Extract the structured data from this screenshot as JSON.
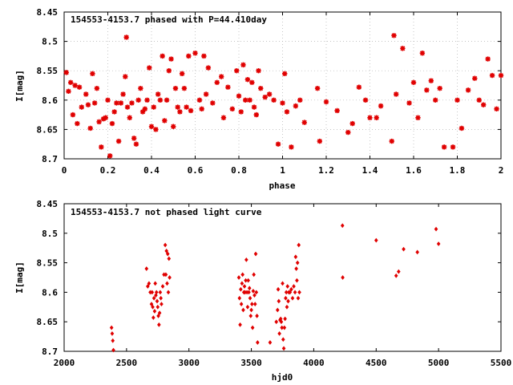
{
  "chart_data": [
    {
      "type": "scatter",
      "title": "154553-4153.7 phased with P=44.410day",
      "xlabel": "phase",
      "ylabel": "I[mag]",
      "xlim": [
        0,
        2
      ],
      "ylim": [
        8.45,
        8.7
      ],
      "y_inverted": true,
      "grid": true,
      "xticks": [
        "0",
        "0.2",
        "0.4",
        "0.6",
        "0.8",
        "1",
        "1.2",
        "1.4",
        "1.6",
        "1.8",
        "2"
      ],
      "yticks": [
        "8.45",
        "8.5",
        "8.55",
        "8.6",
        "8.65",
        "8.7"
      ],
      "marker": "star",
      "color": "#e00000",
      "points": [
        [
          0.01,
          8.553
        ],
        [
          0.02,
          8.585
        ],
        [
          0.03,
          8.57
        ],
        [
          0.04,
          8.625
        ],
        [
          0.05,
          8.575
        ],
        [
          0.06,
          8.64
        ],
        [
          0.07,
          8.578
        ],
        [
          0.08,
          8.612
        ],
        [
          0.1,
          8.59
        ],
        [
          0.11,
          8.608
        ],
        [
          0.12,
          8.648
        ],
        [
          0.13,
          8.555
        ],
        [
          0.14,
          8.605
        ],
        [
          0.15,
          8.58
        ],
        [
          0.16,
          8.637
        ],
        [
          0.17,
          8.68
        ],
        [
          0.18,
          8.632
        ],
        [
          0.19,
          8.63
        ],
        [
          0.2,
          8.6
        ],
        [
          0.21,
          8.695
        ],
        [
          0.22,
          8.64
        ],
        [
          0.23,
          8.62
        ],
        [
          0.24,
          8.605
        ],
        [
          0.25,
          8.67
        ],
        [
          0.26,
          8.605
        ],
        [
          0.27,
          8.59
        ],
        [
          0.28,
          8.56
        ],
        [
          0.285,
          8.493
        ],
        [
          0.29,
          8.612
        ],
        [
          0.3,
          8.63
        ],
        [
          0.31,
          8.605
        ],
        [
          0.32,
          8.665
        ],
        [
          0.33,
          8.675
        ],
        [
          0.34,
          8.6
        ],
        [
          0.35,
          8.58
        ],
        [
          0.36,
          8.62
        ],
        [
          0.37,
          8.615
        ],
        [
          0.38,
          8.6
        ],
        [
          0.39,
          8.545
        ],
        [
          0.4,
          8.645
        ],
        [
          0.41,
          8.612
        ],
        [
          0.42,
          8.65
        ],
        [
          0.43,
          8.59
        ],
        [
          0.44,
          8.6
        ],
        [
          0.45,
          8.525
        ],
        [
          0.46,
          8.635
        ],
        [
          0.47,
          8.6
        ],
        [
          0.48,
          8.55
        ],
        [
          0.49,
          8.53
        ],
        [
          0.5,
          8.645
        ],
        [
          0.51,
          8.58
        ],
        [
          0.52,
          8.612
        ],
        [
          0.53,
          8.62
        ],
        [
          0.54,
          8.555
        ],
        [
          0.55,
          8.58
        ],
        [
          0.56,
          8.612
        ],
        [
          0.57,
          8.525
        ],
        [
          0.58,
          8.618
        ],
        [
          0.6,
          8.52
        ],
        [
          0.62,
          8.6
        ],
        [
          0.63,
          8.615
        ],
        [
          0.64,
          8.525
        ],
        [
          0.65,
          8.59
        ],
        [
          0.66,
          8.545
        ],
        [
          0.68,
          8.605
        ],
        [
          0.7,
          8.57
        ],
        [
          0.72,
          8.56
        ],
        [
          0.73,
          8.63
        ],
        [
          0.75,
          8.578
        ],
        [
          0.77,
          8.615
        ],
        [
          0.79,
          8.55
        ],
        [
          0.8,
          8.593
        ],
        [
          0.81,
          8.62
        ],
        [
          0.82,
          8.54
        ],
        [
          0.83,
          8.6
        ],
        [
          0.84,
          8.565
        ],
        [
          0.85,
          8.6
        ],
        [
          0.86,
          8.57
        ],
        [
          0.87,
          8.612
        ],
        [
          0.88,
          8.625
        ],
        [
          0.89,
          8.55
        ],
        [
          0.9,
          8.58
        ],
        [
          0.92,
          8.595
        ],
        [
          0.94,
          8.59
        ],
        [
          0.96,
          8.6
        ],
        [
          0.98,
          8.675
        ],
        [
          1.0,
          8.605
        ],
        [
          1.01,
          8.555
        ],
        [
          1.02,
          8.62
        ],
        [
          1.04,
          8.68
        ],
        [
          1.06,
          8.61
        ],
        [
          1.08,
          8.6
        ],
        [
          1.1,
          8.638
        ],
        [
          1.16,
          8.58
        ],
        [
          1.17,
          8.67
        ],
        [
          1.2,
          8.603
        ],
        [
          1.25,
          8.618
        ],
        [
          1.3,
          8.655
        ],
        [
          1.32,
          8.64
        ],
        [
          1.35,
          8.578
        ],
        [
          1.38,
          8.6
        ],
        [
          1.4,
          8.63
        ],
        [
          1.43,
          8.63
        ],
        [
          1.45,
          8.61
        ],
        [
          1.5,
          8.67
        ],
        [
          1.51,
          8.49
        ],
        [
          1.52,
          8.59
        ],
        [
          1.55,
          8.512
        ],
        [
          1.58,
          8.605
        ],
        [
          1.6,
          8.57
        ],
        [
          1.62,
          8.63
        ],
        [
          1.64,
          8.52
        ],
        [
          1.66,
          8.583
        ],
        [
          1.68,
          8.567
        ],
        [
          1.7,
          8.6
        ],
        [
          1.72,
          8.58
        ],
        [
          1.74,
          8.68
        ],
        [
          1.78,
          8.68
        ],
        [
          1.8,
          8.6
        ],
        [
          1.82,
          8.648
        ],
        [
          1.85,
          8.583
        ],
        [
          1.88,
          8.563
        ],
        [
          1.9,
          8.6
        ],
        [
          1.92,
          8.608
        ],
        [
          1.94,
          8.53
        ],
        [
          1.96,
          8.558
        ],
        [
          1.98,
          8.615
        ],
        [
          2.0,
          8.558
        ]
      ]
    },
    {
      "type": "scatter",
      "title": "154553-4153.7 not phased light curve",
      "xlabel": "hjd0",
      "ylabel": "I[mag]",
      "xlim": [
        2000,
        5500
      ],
      "ylim": [
        8.45,
        8.7
      ],
      "y_inverted": true,
      "grid": false,
      "xticks": [
        "2000",
        "2500",
        "3000",
        "3500",
        "4000",
        "4500",
        "5000",
        "5500"
      ],
      "yticks": [
        "8.45",
        "8.5",
        "8.55",
        "8.6",
        "8.65",
        "8.7"
      ],
      "marker": "diamond",
      "color": "#e00000",
      "points": [
        [
          2380,
          8.66
        ],
        [
          2385,
          8.67
        ],
        [
          2390,
          8.682
        ],
        [
          2395,
          8.698
        ],
        [
          2660,
          8.56
        ],
        [
          2670,
          8.59
        ],
        [
          2680,
          8.585
        ],
        [
          2690,
          8.6
        ],
        [
          2700,
          8.62
        ],
        [
          2705,
          8.6
        ],
        [
          2710,
          8.625
        ],
        [
          2715,
          8.643
        ],
        [
          2720,
          8.61
        ],
        [
          2725,
          8.632
        ],
        [
          2730,
          8.585
        ],
        [
          2735,
          8.605
        ],
        [
          2740,
          8.6
        ],
        [
          2745,
          8.615
        ],
        [
          2750,
          8.625
        ],
        [
          2755,
          8.64
        ],
        [
          2760,
          8.655
        ],
        [
          2765,
          8.635
        ],
        [
          2770,
          8.6
        ],
        [
          2775,
          8.61
        ],
        [
          2780,
          8.62
        ],
        [
          2790,
          8.59
        ],
        [
          2800,
          8.57
        ],
        [
          2810,
          8.52
        ],
        [
          2815,
          8.57
        ],
        [
          2820,
          8.53
        ],
        [
          2825,
          8.585
        ],
        [
          2830,
          8.535
        ],
        [
          2835,
          8.6
        ],
        [
          2840,
          8.543
        ],
        [
          2845,
          8.575
        ],
        [
          3400,
          8.575
        ],
        [
          3405,
          8.61
        ],
        [
          3410,
          8.655
        ],
        [
          3415,
          8.595
        ],
        [
          3420,
          8.62
        ],
        [
          3425,
          8.585
        ],
        [
          3430,
          8.57
        ],
        [
          3435,
          8.63
        ],
        [
          3440,
          8.6
        ],
        [
          3445,
          8.59
        ],
        [
          3450,
          8.6
        ],
        [
          3455,
          8.58
        ],
        [
          3460,
          8.545
        ],
        [
          3465,
          8.6
        ],
        [
          3470,
          8.625
        ],
        [
          3475,
          8.58
        ],
        [
          3480,
          8.6
        ],
        [
          3485,
          8.593
        ],
        [
          3490,
          8.61
        ],
        [
          3495,
          8.64
        ],
        [
          3500,
          8.63
        ],
        [
          3505,
          8.62
        ],
        [
          3510,
          8.66
        ],
        [
          3515,
          8.598
        ],
        [
          3520,
          8.57
        ],
        [
          3525,
          8.605
        ],
        [
          3530,
          8.62
        ],
        [
          3535,
          8.535
        ],
        [
          3540,
          8.6
        ],
        [
          3545,
          8.64
        ],
        [
          3550,
          8.685
        ],
        [
          3650,
          8.685
        ],
        [
          3700,
          8.65
        ],
        [
          3710,
          8.63
        ],
        [
          3715,
          8.595
        ],
        [
          3720,
          8.615
        ],
        [
          3725,
          8.67
        ],
        [
          3730,
          8.647
        ],
        [
          3735,
          8.645
        ],
        [
          3740,
          8.65
        ],
        [
          3745,
          8.66
        ],
        [
          3750,
          8.585
        ],
        [
          3755,
          8.68
        ],
        [
          3760,
          8.695
        ],
        [
          3765,
          8.66
        ],
        [
          3770,
          8.645
        ],
        [
          3775,
          8.61
        ],
        [
          3780,
          8.6
        ],
        [
          3785,
          8.625
        ],
        [
          3790,
          8.59
        ],
        [
          3795,
          8.615
        ],
        [
          3800,
          8.6
        ],
        [
          3810,
          8.6
        ],
        [
          3820,
          8.595
        ],
        [
          3830,
          8.61
        ],
        [
          3840,
          8.59
        ],
        [
          3850,
          8.6
        ],
        [
          3855,
          8.54
        ],
        [
          3860,
          8.56
        ],
        [
          3865,
          8.58
        ],
        [
          3870,
          8.55
        ],
        [
          3875,
          8.61
        ],
        [
          3880,
          8.52
        ],
        [
          3885,
          8.6
        ],
        [
          4230,
          8.487
        ],
        [
          4232,
          8.575
        ],
        [
          4500,
          8.512
        ],
        [
          4660,
          8.572
        ],
        [
          4680,
          8.565
        ],
        [
          4720,
          8.527
        ],
        [
          4830,
          8.532
        ],
        [
          4980,
          8.493
        ],
        [
          5000,
          8.518
        ]
      ]
    }
  ]
}
